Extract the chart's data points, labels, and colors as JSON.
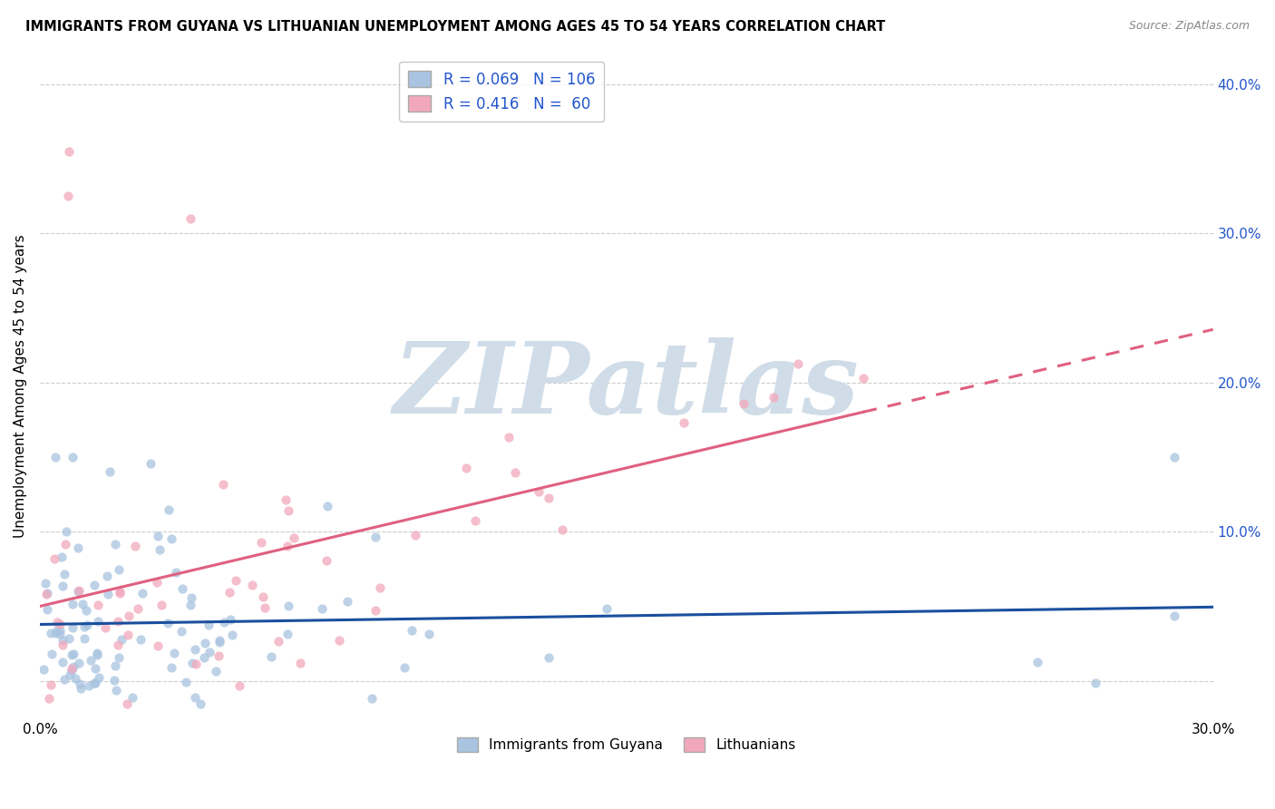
{
  "title": "IMMIGRANTS FROM GUYANA VS LITHUANIAN UNEMPLOYMENT AMONG AGES 45 TO 54 YEARS CORRELATION CHART",
  "source": "Source: ZipAtlas.com",
  "ylabel": "Unemployment Among Ages 45 to 54 years",
  "xlim": [
    0.0,
    0.3
  ],
  "ylim": [
    -0.025,
    0.42
  ],
  "yticks": [
    0.0,
    0.1,
    0.2,
    0.3,
    0.4
  ],
  "ytick_labels": [
    "",
    "10.0%",
    "20.0%",
    "30.0%",
    "40.0%"
  ],
  "xtick_vals": [
    0.0,
    0.3
  ],
  "xtick_labels": [
    "0.0%",
    "30.0%"
  ],
  "blue_R": 0.069,
  "blue_N": 106,
  "pink_R": 0.416,
  "pink_N": 60,
  "blue_color": "#a8c4e0",
  "pink_color": "#f2a8bc",
  "blue_line_color": "#1a4f9e",
  "pink_line_color": "#e06080",
  "watermark_color": "#d0dde8",
  "grid_color": "#cccccc",
  "background_color": "#ffffff",
  "legend_text_color": "#2255cc",
  "ytick_color": "#2255cc",
  "watermark": "ZIPatlas"
}
